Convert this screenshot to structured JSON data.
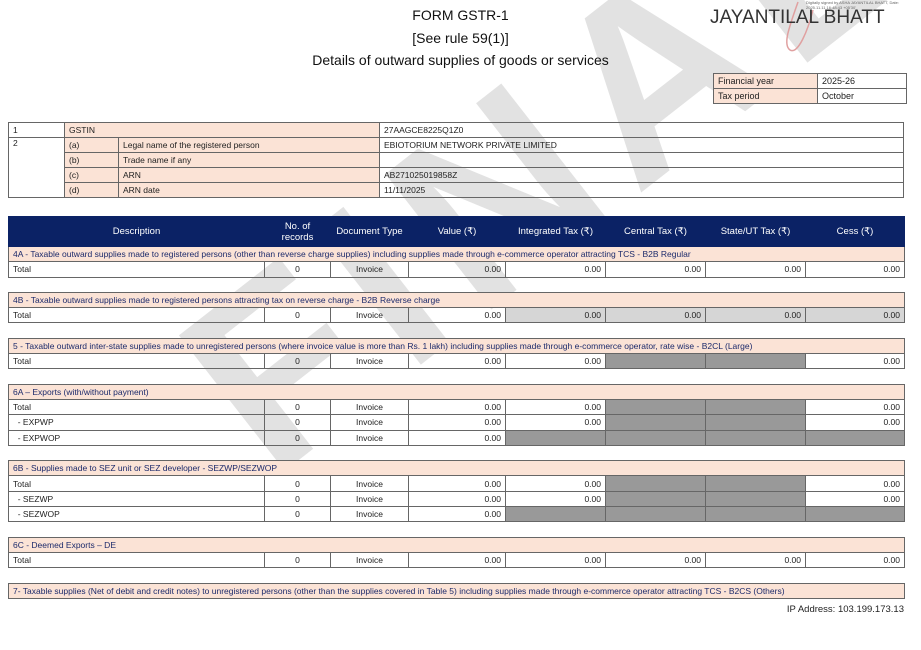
{
  "form": {
    "title": "FORM GSTR-1",
    "rule": "[See rule 59(1)]",
    "subtitle": "Details of outward supplies of goods or services"
  },
  "signature": {
    "name": "JAYANTILAL BHATT",
    "fine_print": "Digitally signed by ASHA JAYANTILAL BHATT, Date: 2025.11.11 16:48:43 +05'30'"
  },
  "period": {
    "financial_year_label": "Financial year",
    "financial_year": "2025-26",
    "tax_period_label": "Tax period",
    "tax_period": "October"
  },
  "taxpayer": {
    "row1_no": "1",
    "gstin_label": "GSTIN",
    "gstin": "27AAGCE8225Q1Z0",
    "row2_no": "2",
    "items": [
      {
        "key": "(a)",
        "label": "Legal name of the registered person",
        "value": "EBIOTORIUM NETWORK PRIVATE LIMITED"
      },
      {
        "key": "(b)",
        "label": "Trade name if any",
        "value": ""
      },
      {
        "key": "(c)",
        "label": "ARN",
        "value": "AB271025019858Z"
      },
      {
        "key": "(d)",
        "label": "ARN date",
        "value": "11/11/2025"
      }
    ]
  },
  "table": {
    "headers": [
      "Description",
      "No. of records",
      "Document Type",
      "Value (₹)",
      "Integrated Tax (₹)",
      "Central Tax (₹)",
      "State/UT Tax (₹)",
      "Cess (₹)"
    ],
    "sections": [
      {
        "title": "4A - Taxable outward supplies made to registered persons (other than reverse charge supplies) including supplies made through e-commerce operator attracting TCS - B2B Regular",
        "rows": [
          {
            "desc": "Total",
            "records": "0",
            "doc": "Invoice",
            "values": [
              "0.00",
              "0.00",
              "0.00",
              "0.00",
              "0.00"
            ]
          }
        ]
      },
      {
        "title": "4B - Taxable outward supplies made to registered persons attracting tax on reverse charge - B2B Reverse charge",
        "tax_readonly": true,
        "rows": [
          {
            "desc": "Total",
            "records": "0",
            "doc": "Invoice",
            "values": [
              "0.00",
              "0.00",
              "0.00",
              "0.00",
              "0.00"
            ]
          }
        ]
      },
      {
        "title": "5 - Taxable outward inter-state supplies made to unregistered persons (where invoice value is more than Rs. 1 lakh) including supplies made through e-commerce operator, rate wise - B2CL (Large)",
        "rows": [
          {
            "desc": "Total",
            "records": "0",
            "doc": "Invoice",
            "values": [
              "0.00",
              "0.00",
              null,
              null,
              "0.00"
            ]
          }
        ]
      },
      {
        "title": "6A – Exports (with/without payment)",
        "rows": [
          {
            "desc": "Total",
            "records": "0",
            "doc": "Invoice",
            "values": [
              "0.00",
              "0.00",
              null,
              null,
              "0.00"
            ]
          },
          {
            "desc": "  - EXPWP",
            "records": "0",
            "doc": "Invoice",
            "values": [
              "0.00",
              "0.00",
              null,
              null,
              "0.00"
            ]
          },
          {
            "desc": "  - EXPWOP",
            "records": "0",
            "doc": "Invoice",
            "values": [
              "0.00",
              null,
              null,
              null,
              null
            ]
          }
        ]
      },
      {
        "title": "6B - Supplies made to SEZ unit or SEZ developer - SEZWP/SEZWOP",
        "rows": [
          {
            "desc": "Total",
            "records": "0",
            "doc": "Invoice",
            "values": [
              "0.00",
              "0.00",
              null,
              null,
              "0.00"
            ]
          },
          {
            "desc": "  - SEZWP",
            "records": "0",
            "doc": "Invoice",
            "values": [
              "0.00",
              "0.00",
              null,
              null,
              "0.00"
            ]
          },
          {
            "desc": "  - SEZWOP",
            "records": "0",
            "doc": "Invoice",
            "values": [
              "0.00",
              null,
              null,
              null,
              null
            ]
          }
        ]
      },
      {
        "title": "6C - Deemed Exports – DE",
        "rows": [
          {
            "desc": "Total",
            "records": "0",
            "doc": "Invoice",
            "values": [
              "0.00",
              "0.00",
              "0.00",
              "0.00",
              "0.00"
            ]
          }
        ]
      },
      {
        "title": "7- Taxable supplies (Net of debit and credit notes) to unregistered persons (other than the supplies covered in Table 5) including supplies made through e-commerce operator attracting TCS - B2CS (Others)",
        "rows": []
      }
    ]
  },
  "watermark": "FINAL",
  "footer": {
    "ip": "IP Address: 103.199.173.13"
  },
  "colors": {
    "header_bg": "#0b2265",
    "section_bg": "#fbe3d6",
    "disabled_cell": "#999999",
    "readonly_cell": "#d6d6d6"
  }
}
